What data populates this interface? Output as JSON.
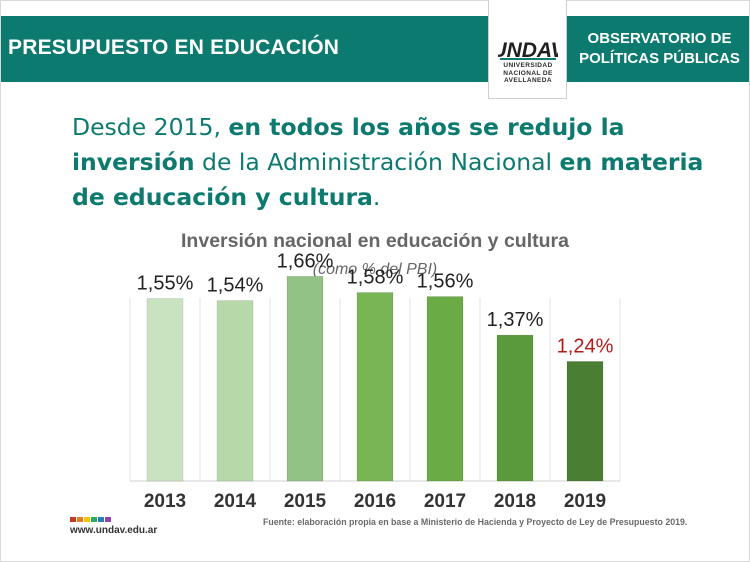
{
  "header": {
    "title": "PRESUPUESTO EN EDUCACIÓN",
    "observatorio_line1": "OBSERVATORIO DE",
    "observatorio_line2": "POLÍTICAS PÚBLICAS",
    "logo_word": "UNDAV",
    "logo_line1": "UNIVERSIDAD",
    "logo_line2": "NACIONAL DE",
    "logo_line3": "AVELLANEDA",
    "color": "#0d7a6f"
  },
  "headline": {
    "p1": "Desde 2015, ",
    "p2": "en todos los años se redujo la inversión",
    "p3": " de la Administración Nacional ",
    "p4": "en materia de educación y cultura",
    "p5": "."
  },
  "chart_data": {
    "type": "bar",
    "title": "Inversión nacional en educación y cultura",
    "subtitle": "(como % del PBI)",
    "categories": [
      "2013",
      "2014",
      "2015",
      "2016",
      "2017",
      "2018",
      "2019"
    ],
    "values": [
      1.55,
      1.54,
      1.66,
      1.58,
      1.56,
      1.37,
      1.24
    ],
    "value_labels": [
      "1,55%",
      "1,54%",
      "1,66%",
      "1,58%",
      "1,56%",
      "1,37%",
      "1,24%"
    ],
    "bar_colors": [
      "#c9e3c0",
      "#b6d9aa",
      "#93c285",
      "#78b553",
      "#6aab45",
      "#5a9a3c",
      "#4a7f33"
    ],
    "label_colors": [
      "#222222",
      "#222222",
      "#222222",
      "#222222",
      "#222222",
      "#222222",
      "#b31b1b"
    ],
    "ylim": [
      0.65,
      1.78
    ],
    "grid": "vertical"
  },
  "footer": {
    "website": "www.undav.edu.ar",
    "source": "Fuente: elaboración propia en base a Ministerio de Hacienda y Proyecto de Ley de Presupuesto 2019.",
    "dot_colors": [
      "#c0392b",
      "#e67e22",
      "#f1c40f",
      "#27ae60",
      "#2980b9",
      "#8e44ad"
    ]
  }
}
